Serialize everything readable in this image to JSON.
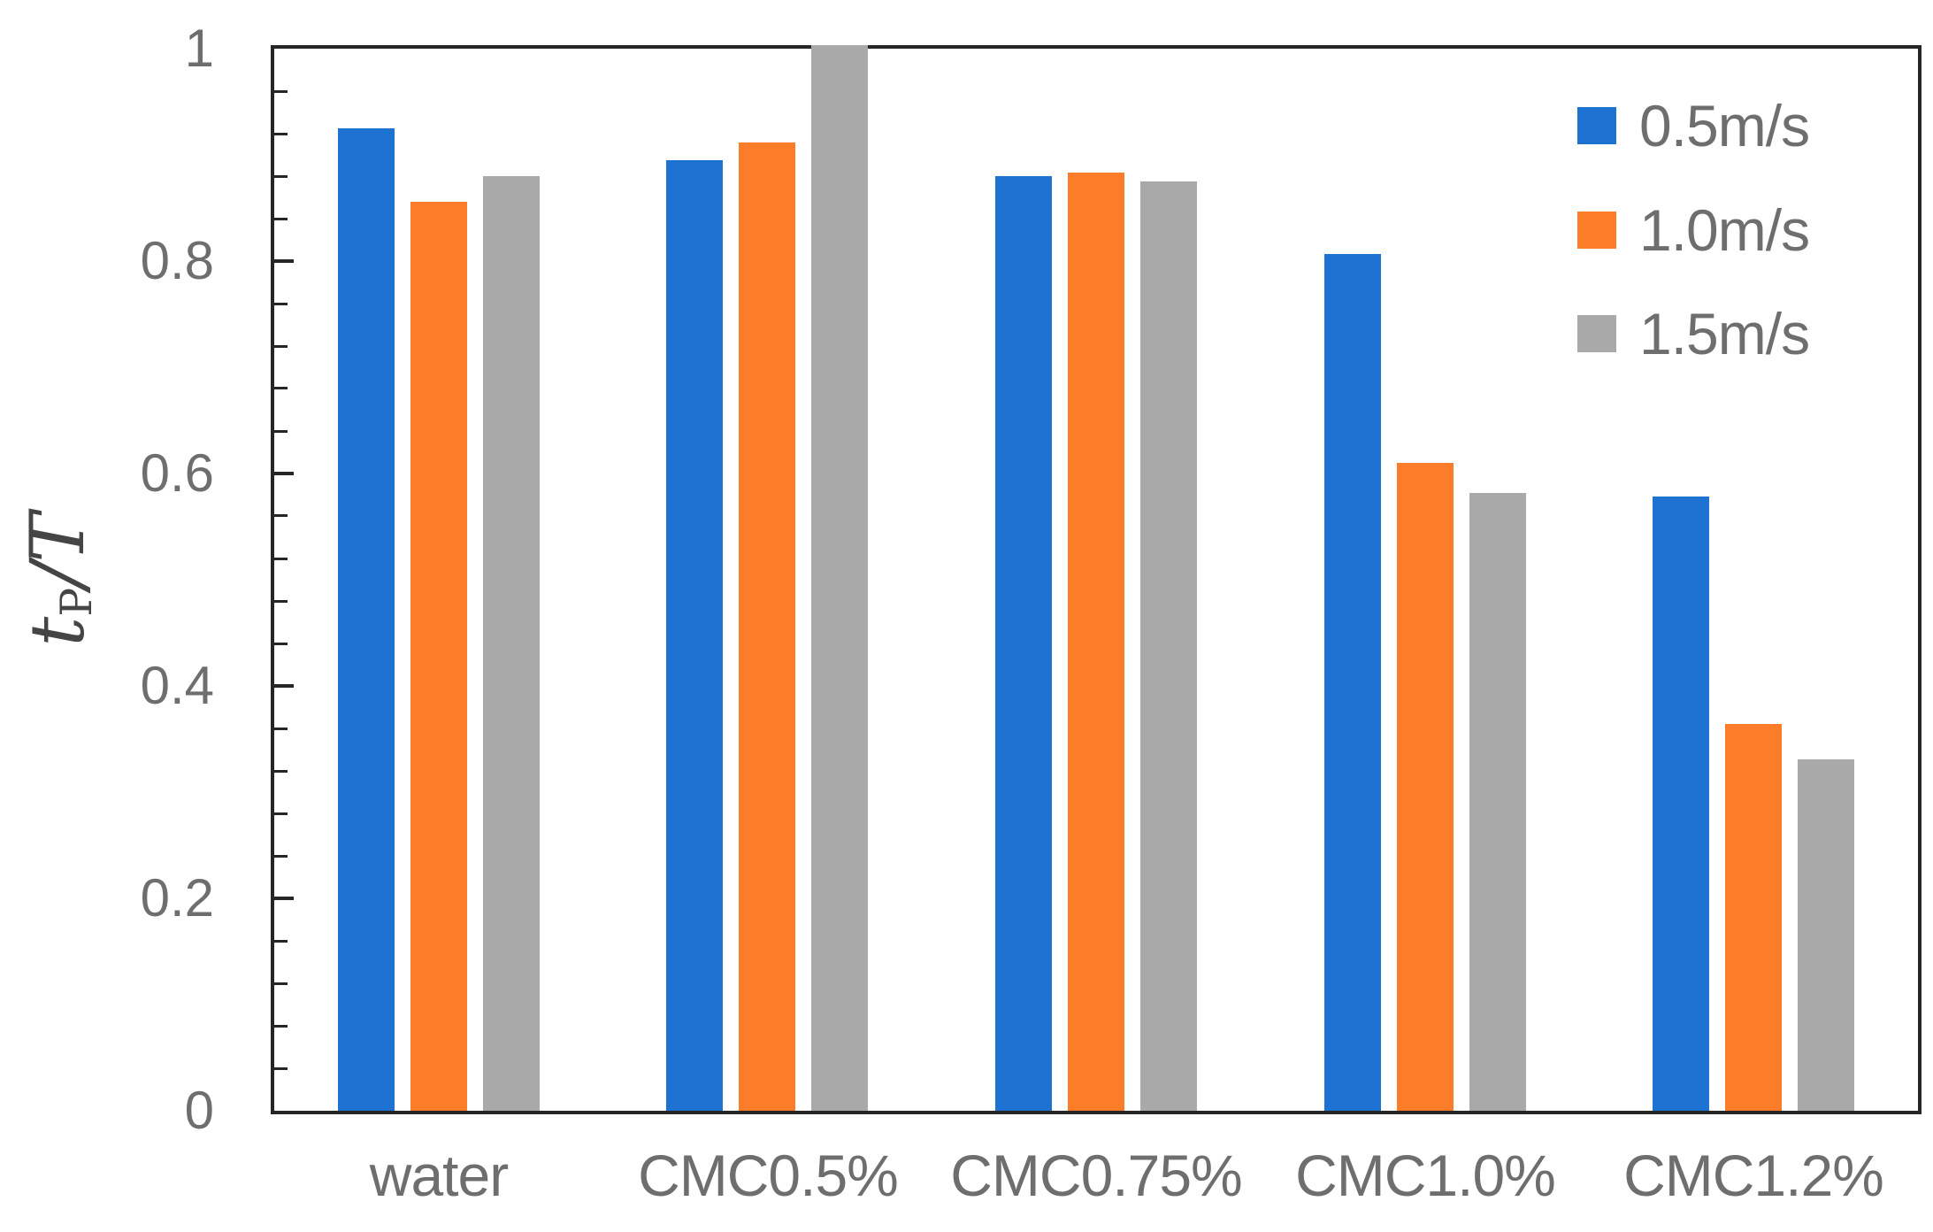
{
  "chart_data": {
    "type": "bar",
    "title": "",
    "ylabel": "tP/T",
    "ylabel_parts": {
      "var": "t",
      "sub": "P",
      "rest": "/T"
    },
    "xlabel": "",
    "categories": [
      "water",
      "CMC0.5%",
      "CMC0.75%",
      "CMC1.0%",
      "CMC1.2%"
    ],
    "series": [
      {
        "name": "0.5m/s",
        "color": "#1e73d2",
        "values": [
          0.925,
          0.895,
          0.88,
          0.807,
          0.578
        ]
      },
      {
        "name": "1.0m/s",
        "color": "#fb7d29",
        "values": [
          0.856,
          0.912,
          0.883,
          0.61,
          0.364
        ]
      },
      {
        "name": "1.5m/s",
        "color": "#a9a9a9",
        "values": [
          0.88,
          1.003,
          0.875,
          0.582,
          0.331
        ]
      }
    ],
    "ylim": [
      0,
      1
    ],
    "yticks": [
      0,
      0.2,
      0.4,
      0.6,
      0.8,
      1
    ],
    "ytick_labels": [
      "0",
      "0.2",
      "0.4",
      "0.6",
      "0.8",
      "1"
    ],
    "minor_tick_step": 0.04,
    "grid": false,
    "legend_position": "top-right",
    "colors": {
      "axis": "#262626",
      "tick_text": "#6e6e6e",
      "axis_title_text": "#454545"
    }
  }
}
